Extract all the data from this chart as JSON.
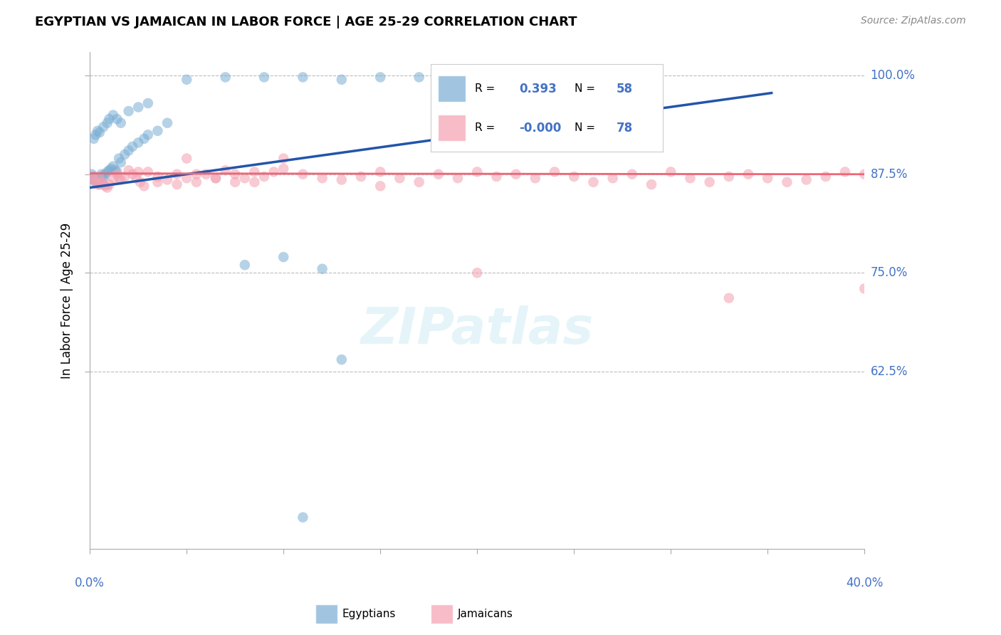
{
  "title": "EGYPTIAN VS JAMAICAN IN LABOR FORCE | AGE 25-29 CORRELATION CHART",
  "source": "Source: ZipAtlas.com",
  "ylabel": "In Labor Force | Age 25-29",
  "xmin": 0.0,
  "xmax": 0.4,
  "ymin": 0.4,
  "ymax": 1.03,
  "blue_R": 0.393,
  "blue_N": 58,
  "pink_R": -0.0,
  "pink_N": 78,
  "blue_color": "#7aadd4",
  "pink_color": "#f4a0b0",
  "blue_line_color": "#2255aa",
  "pink_line_color": "#ee6677",
  "bg_color": "#ffffff",
  "ytick_vals": [
    1.0,
    0.875,
    0.75,
    0.625
  ],
  "ytick_labels": [
    "100.0%",
    "87.5%",
    "75.0%",
    "62.5%"
  ],
  "xtick_label_left": "0.0%",
  "xtick_label_right": "40.0%",
  "label_color": "#4472c4",
  "blue_x": [
    0.001,
    0.001,
    0.002,
    0.002,
    0.003,
    0.003,
    0.004,
    0.004,
    0.005,
    0.005,
    0.006,
    0.006,
    0.007,
    0.008,
    0.009,
    0.01,
    0.011,
    0.012,
    0.013,
    0.014,
    0.015,
    0.016,
    0.018,
    0.02,
    0.022,
    0.025,
    0.028,
    0.03,
    0.035,
    0.04,
    0.002,
    0.003,
    0.004,
    0.005,
    0.007,
    0.009,
    0.01,
    0.012,
    0.014,
    0.016,
    0.02,
    0.025,
    0.03,
    0.05,
    0.07,
    0.09,
    0.11,
    0.13,
    0.15,
    0.17,
    0.19,
    0.21,
    0.23,
    0.08,
    0.1,
    0.12,
    0.13,
    0.11
  ],
  "blue_y": [
    0.87,
    0.875,
    0.868,
    0.872,
    0.865,
    0.87,
    0.865,
    0.868,
    0.862,
    0.865,
    0.875,
    0.872,
    0.87,
    0.875,
    0.878,
    0.88,
    0.882,
    0.885,
    0.88,
    0.878,
    0.895,
    0.89,
    0.9,
    0.905,
    0.91,
    0.915,
    0.92,
    0.925,
    0.93,
    0.94,
    0.92,
    0.925,
    0.93,
    0.928,
    0.935,
    0.94,
    0.945,
    0.95,
    0.945,
    0.94,
    0.955,
    0.96,
    0.965,
    0.995,
    0.998,
    0.998,
    0.998,
    0.995,
    0.998,
    0.998,
    0.998,
    0.998,
    0.998,
    0.76,
    0.77,
    0.755,
    0.64,
    0.44
  ],
  "pink_x": [
    0.001,
    0.002,
    0.003,
    0.004,
    0.005,
    0.006,
    0.007,
    0.008,
    0.009,
    0.01,
    0.012,
    0.014,
    0.016,
    0.018,
    0.02,
    0.022,
    0.024,
    0.026,
    0.028,
    0.03,
    0.035,
    0.04,
    0.045,
    0.05,
    0.055,
    0.06,
    0.065,
    0.07,
    0.075,
    0.08,
    0.085,
    0.09,
    0.095,
    0.1,
    0.11,
    0.12,
    0.13,
    0.14,
    0.15,
    0.16,
    0.17,
    0.18,
    0.19,
    0.2,
    0.21,
    0.22,
    0.23,
    0.24,
    0.25,
    0.26,
    0.27,
    0.28,
    0.29,
    0.3,
    0.31,
    0.32,
    0.33,
    0.34,
    0.35,
    0.36,
    0.37,
    0.38,
    0.39,
    0.4,
    0.015,
    0.025,
    0.035,
    0.045,
    0.055,
    0.065,
    0.075,
    0.085,
    0.2,
    0.33,
    0.4,
    0.05,
    0.1,
    0.15
  ],
  "pink_y": [
    0.872,
    0.868,
    0.865,
    0.862,
    0.87,
    0.865,
    0.862,
    0.86,
    0.858,
    0.862,
    0.87,
    0.875,
    0.868,
    0.872,
    0.88,
    0.875,
    0.87,
    0.865,
    0.86,
    0.878,
    0.872,
    0.868,
    0.875,
    0.87,
    0.865,
    0.875,
    0.87,
    0.88,
    0.875,
    0.87,
    0.865,
    0.872,
    0.878,
    0.882,
    0.875,
    0.87,
    0.868,
    0.872,
    0.878,
    0.87,
    0.865,
    0.875,
    0.87,
    0.878,
    0.872,
    0.875,
    0.87,
    0.878,
    0.872,
    0.865,
    0.87,
    0.875,
    0.862,
    0.878,
    0.87,
    0.865,
    0.872,
    0.875,
    0.87,
    0.865,
    0.868,
    0.872,
    0.878,
    0.875,
    0.87,
    0.878,
    0.865,
    0.862,
    0.875,
    0.87,
    0.865,
    0.878,
    0.75,
    0.718,
    0.73,
    0.895,
    0.895,
    0.86
  ],
  "blue_line_x": [
    0.0,
    0.352
  ],
  "blue_line_y": [
    0.858,
    0.978
  ],
  "pink_line_x": [
    0.0,
    0.4
  ],
  "pink_line_y": [
    0.876,
    0.875
  ]
}
